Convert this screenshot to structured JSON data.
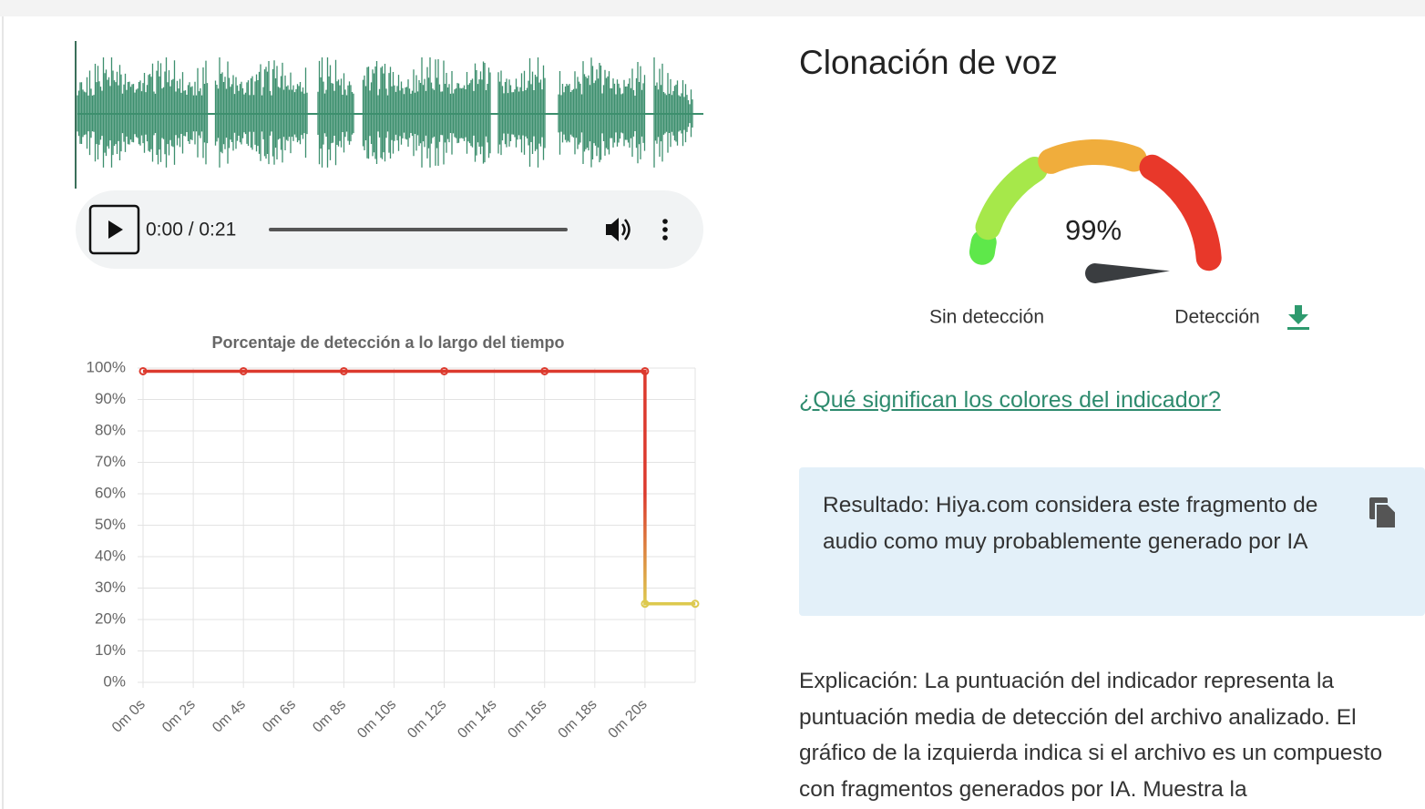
{
  "player": {
    "time": "0:00 / 0:21"
  },
  "heading": "Clonación de voz",
  "link": "¿Qué significan los colores del indicador?",
  "result": "Resultado: Hiya.com considera este fragmento de audio como muy probablemente generado por IA",
  "explanation": "Explicación: La puntuación del indicador representa la puntuación media de detección del archivo analizado. El gráfico de la izquierda indica si el archivo es un compuesto con fragmentos generados por IA. Muestra la",
  "chart_data": [
    {
      "type": "line",
      "title": "Porcentaje de detección a lo largo del tiempo",
      "x": [
        0,
        4,
        8,
        12,
        16,
        20,
        20,
        22
      ],
      "values": [
        99,
        99,
        99,
        99,
        99,
        99,
        25,
        25
      ],
      "colors": [
        "#dc3a2e",
        "#ddc94e"
      ],
      "xlim": [
        0,
        22
      ],
      "xticks": [
        {
          "value": 0,
          "label": "0m 0s"
        },
        {
          "value": 2,
          "label": "0m 2s"
        },
        {
          "value": 4,
          "label": "0m 4s"
        },
        {
          "value": 6,
          "label": "0m 6s"
        },
        {
          "value": 8,
          "label": "0m 8s"
        },
        {
          "value": 10,
          "label": "0m 10s"
        },
        {
          "value": 12,
          "label": "0m 12s"
        },
        {
          "value": 14,
          "label": "0m 14s"
        },
        {
          "value": 16,
          "label": "0m 16s"
        },
        {
          "value": 18,
          "label": "0m 18s"
        },
        {
          "value": 20,
          "label": "0m 20s"
        }
      ],
      "ylim": [
        0,
        100
      ],
      "yticks": [
        {
          "value": 0,
          "label": "0%"
        },
        {
          "value": 10,
          "label": "10%"
        },
        {
          "value": 20,
          "label": "20%"
        },
        {
          "value": 30,
          "label": "30%"
        },
        {
          "value": 40,
          "label": "40%"
        },
        {
          "value": 50,
          "label": "50%"
        },
        {
          "value": 60,
          "label": "60%"
        },
        {
          "value": 70,
          "label": "70%"
        },
        {
          "value": 80,
          "label": "80%"
        },
        {
          "value": 90,
          "label": "90%"
        },
        {
          "value": 100,
          "label": "100%"
        }
      ],
      "grid": true
    },
    {
      "type": "gauge",
      "value": 99,
      "value_label": "99%",
      "lim": [
        0,
        100
      ],
      "min_label": "Sin detección",
      "max_label": "Detección",
      "color": "#3a3d40"
    }
  ]
}
